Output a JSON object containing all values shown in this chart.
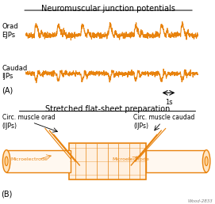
{
  "title_top": "Neuromuscular junction potentials",
  "title_bottom": "Stretched flat-sheet preparation",
  "label_A": "(A)",
  "label_B": "(B)",
  "label_orad": "Orad\nEJPs",
  "label_caudad": "Caudad\nIJPs",
  "scale_bar_label": "1s",
  "circ_orad_label": "Circ. muscle orad\n(IJPs)",
  "circ_caudad_label": "Circ. muscle caudad\n(IJPs)",
  "micro_left": "Microelectrode",
  "micro_right": "Microelectrode",
  "watermark": "Wood-2833",
  "line_color": "#E8820C",
  "bg_color": "#FFFFFF",
  "text_color": "#000000",
  "orange_color": "#E8820C"
}
